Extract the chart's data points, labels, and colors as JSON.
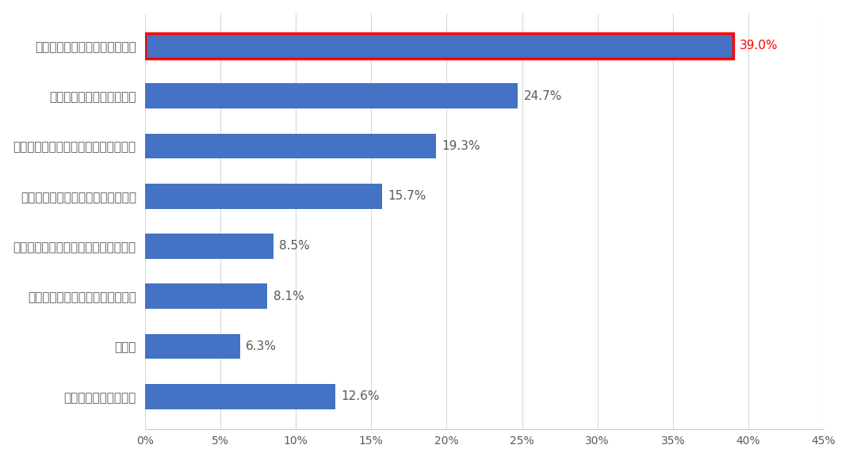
{
  "categories": [
    "あてはまるものはない",
    "その他",
    "支援・応援したいと思わないから",
    "購入金額の一部しか寄付されないから",
    "寄付できる商品には魅力がないから",
    "きちんと情報が開示されていないから",
    "いつもより価格が高いから",
    "寄付金の使われ方が不明だから"
  ],
  "values": [
    12.6,
    6.3,
    8.1,
    8.5,
    15.7,
    19.3,
    24.7,
    39.0
  ],
  "bar_color": "#4472C4",
  "highlight_border_color": "#FF0000",
  "highlight_index": 7,
  "label_color_normal": "#595959",
  "label_color_highlight": "#FF0000",
  "background_color": "#FFFFFF",
  "xlim": [
    0,
    45
  ],
  "xtick_values": [
    0,
    5,
    10,
    15,
    20,
    25,
    30,
    35,
    40,
    45
  ],
  "xtick_labels": [
    "0%",
    "5%",
    "10%",
    "15%",
    "20%",
    "25%",
    "30%",
    "35%",
    "40%",
    "45%"
  ],
  "bar_height": 0.5,
  "figsize": [
    10.71,
    5.81
  ],
  "dpi": 100,
  "label_fontsize": 11,
  "tick_fontsize": 10,
  "ytick_fontsize": 11,
  "grid_color": "#D9D9D9",
  "spine_color": "#CCCCCC"
}
